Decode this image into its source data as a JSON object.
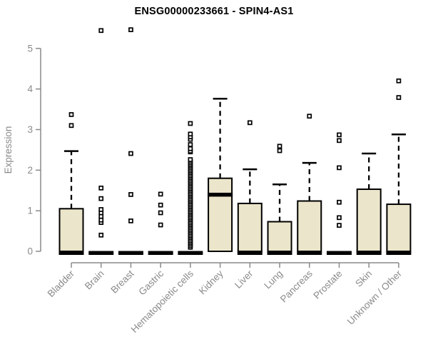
{
  "chart_data": {
    "type": "boxplot",
    "title": "ENSG00000233661 - SPIN4-AS1",
    "xlabel": "",
    "ylabel": "Expression",
    "ylim": [
      0,
      5.6
    ],
    "yticks": [
      0,
      1,
      2,
      3,
      4,
      5
    ],
    "grid": false,
    "legend": "none",
    "categories": [
      "Bladder",
      "Brain",
      "Breast",
      "Gastric",
      "Hematopoietic cells",
      "Kidney",
      "Liver",
      "Lung",
      "Pancreas",
      "Prostate",
      "Skin",
      "Unknown / Other"
    ],
    "series": [
      {
        "name": "Bladder",
        "q1": 0,
        "median": 0,
        "q3": 1.05,
        "whisker_low": 0,
        "whisker_high": 2.47,
        "outliers": [
          3.1,
          3.37
        ]
      },
      {
        "name": "Brain",
        "q1": 0,
        "median": 0,
        "q3": 0,
        "whisker_low": 0,
        "whisker_high": 0,
        "outliers": [
          0.4,
          0.71,
          0.77,
          0.86,
          0.95,
          1.03,
          1.3,
          1.56,
          5.44
        ]
      },
      {
        "name": "Breast",
        "q1": 0,
        "median": 0,
        "q3": 0,
        "whisker_low": 0,
        "whisker_high": 0,
        "outliers": [
          0.75,
          1.4,
          2.41,
          5.46
        ]
      },
      {
        "name": "Gastric",
        "q1": 0,
        "median": 0,
        "q3": 0,
        "whisker_low": 0,
        "whisker_high": 0,
        "outliers": [
          0.65,
          0.95,
          1.14,
          1.41
        ]
      },
      {
        "name": "Hematopoietic cells",
        "q1": 0,
        "median": 0,
        "q3": 0,
        "whisker_low": 0,
        "whisker_high": 0,
        "outliers": [
          0.1,
          0.14,
          0.18,
          0.22,
          0.26,
          0.3,
          0.34,
          0.38,
          0.42,
          0.46,
          0.5,
          0.54,
          0.58,
          0.62,
          0.66,
          0.7,
          0.74,
          0.78,
          0.82,
          0.86,
          0.9,
          0.94,
          0.98,
          1.02,
          1.06,
          1.1,
          1.14,
          1.18,
          1.22,
          1.26,
          1.3,
          1.34,
          1.38,
          1.42,
          1.46,
          1.5,
          1.54,
          1.58,
          1.62,
          1.66,
          1.7,
          1.74,
          1.78,
          1.82,
          1.86,
          1.9,
          1.94,
          1.98,
          2.02,
          2.06,
          2.1,
          2.14,
          2.18,
          2.22,
          2.26,
          2.45,
          2.47,
          2.53,
          2.63,
          2.76,
          2.82,
          2.89,
          3.15
        ]
      },
      {
        "name": "Kidney",
        "q1": 0,
        "median": 1.4,
        "q3": 1.8,
        "whisker_low": 0,
        "whisker_high": 3.76,
        "outliers": []
      },
      {
        "name": "Liver",
        "q1": 0,
        "median": 0,
        "q3": 1.18,
        "whisker_low": 0,
        "whisker_high": 2.02,
        "outliers": [
          3.17
        ]
      },
      {
        "name": "Lung",
        "q1": 0,
        "median": 0,
        "q3": 0.73,
        "whisker_low": 0,
        "whisker_high": 1.65,
        "outliers": [
          2.48,
          2.59
        ]
      },
      {
        "name": "Pancreas",
        "q1": 0,
        "median": 0,
        "q3": 1.24,
        "whisker_low": 0,
        "whisker_high": 2.18,
        "outliers": [
          3.33
        ]
      },
      {
        "name": "Prostate",
        "q1": 0,
        "median": 0,
        "q3": 0,
        "whisker_low": 0,
        "whisker_high": 0,
        "outliers": [
          0.64,
          0.83,
          1.21,
          2.06,
          2.73,
          2.87
        ]
      },
      {
        "name": "Skin",
        "q1": 0,
        "median": 0,
        "q3": 1.53,
        "whisker_low": 0,
        "whisker_high": 2.41,
        "outliers": []
      },
      {
        "name": "Unknown / Other",
        "q1": 0,
        "median": 0,
        "q3": 1.16,
        "whisker_low": 0,
        "whisker_high": 2.88,
        "outliers": [
          3.79,
          4.2
        ]
      }
    ],
    "colors": {
      "box_fill": "#EBE6CB",
      "box_border": "#000000",
      "median": "#000000",
      "whisker": "#000000",
      "outlier_fill": "#ffffff",
      "outlier_border": "#000000",
      "axis": "#8A8A8A",
      "tick_label": "#8A8A8A",
      "title": "#000000"
    }
  }
}
